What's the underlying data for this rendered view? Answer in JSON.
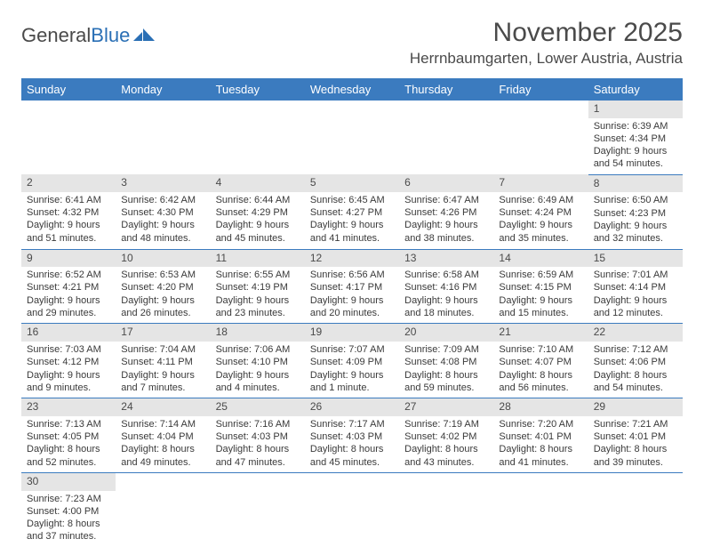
{
  "logo": {
    "text1": "General",
    "text2": "Blue"
  },
  "title": "November 2025",
  "location": "Herrnbaumgarten, Lower Austria, Austria",
  "colors": {
    "header_bg": "#3b7bbf",
    "header_text": "#ffffff",
    "daynum_bg": "#e5e5e5",
    "row_border": "#3b7bbf",
    "logo_gray": "#4a4a4a",
    "logo_blue": "#2a6fb5",
    "body_text": "#3a3a3a"
  },
  "weekdays": [
    "Sunday",
    "Monday",
    "Tuesday",
    "Wednesday",
    "Thursday",
    "Friday",
    "Saturday"
  ],
  "weeks": [
    [
      null,
      null,
      null,
      null,
      null,
      null,
      {
        "n": "1",
        "sr": "Sunrise: 6:39 AM",
        "ss": "Sunset: 4:34 PM",
        "dl1": "Daylight: 9 hours",
        "dl2": "and 54 minutes."
      }
    ],
    [
      {
        "n": "2",
        "sr": "Sunrise: 6:41 AM",
        "ss": "Sunset: 4:32 PM",
        "dl1": "Daylight: 9 hours",
        "dl2": "and 51 minutes."
      },
      {
        "n": "3",
        "sr": "Sunrise: 6:42 AM",
        "ss": "Sunset: 4:30 PM",
        "dl1": "Daylight: 9 hours",
        "dl2": "and 48 minutes."
      },
      {
        "n": "4",
        "sr": "Sunrise: 6:44 AM",
        "ss": "Sunset: 4:29 PM",
        "dl1": "Daylight: 9 hours",
        "dl2": "and 45 minutes."
      },
      {
        "n": "5",
        "sr": "Sunrise: 6:45 AM",
        "ss": "Sunset: 4:27 PM",
        "dl1": "Daylight: 9 hours",
        "dl2": "and 41 minutes."
      },
      {
        "n": "6",
        "sr": "Sunrise: 6:47 AM",
        "ss": "Sunset: 4:26 PM",
        "dl1": "Daylight: 9 hours",
        "dl2": "and 38 minutes."
      },
      {
        "n": "7",
        "sr": "Sunrise: 6:49 AM",
        "ss": "Sunset: 4:24 PM",
        "dl1": "Daylight: 9 hours",
        "dl2": "and 35 minutes."
      },
      {
        "n": "8",
        "sr": "Sunrise: 6:50 AM",
        "ss": "Sunset: 4:23 PM",
        "dl1": "Daylight: 9 hours",
        "dl2": "and 32 minutes."
      }
    ],
    [
      {
        "n": "9",
        "sr": "Sunrise: 6:52 AM",
        "ss": "Sunset: 4:21 PM",
        "dl1": "Daylight: 9 hours",
        "dl2": "and 29 minutes."
      },
      {
        "n": "10",
        "sr": "Sunrise: 6:53 AM",
        "ss": "Sunset: 4:20 PM",
        "dl1": "Daylight: 9 hours",
        "dl2": "and 26 minutes."
      },
      {
        "n": "11",
        "sr": "Sunrise: 6:55 AM",
        "ss": "Sunset: 4:19 PM",
        "dl1": "Daylight: 9 hours",
        "dl2": "and 23 minutes."
      },
      {
        "n": "12",
        "sr": "Sunrise: 6:56 AM",
        "ss": "Sunset: 4:17 PM",
        "dl1": "Daylight: 9 hours",
        "dl2": "and 20 minutes."
      },
      {
        "n": "13",
        "sr": "Sunrise: 6:58 AM",
        "ss": "Sunset: 4:16 PM",
        "dl1": "Daylight: 9 hours",
        "dl2": "and 18 minutes."
      },
      {
        "n": "14",
        "sr": "Sunrise: 6:59 AM",
        "ss": "Sunset: 4:15 PM",
        "dl1": "Daylight: 9 hours",
        "dl2": "and 15 minutes."
      },
      {
        "n": "15",
        "sr": "Sunrise: 7:01 AM",
        "ss": "Sunset: 4:14 PM",
        "dl1": "Daylight: 9 hours",
        "dl2": "and 12 minutes."
      }
    ],
    [
      {
        "n": "16",
        "sr": "Sunrise: 7:03 AM",
        "ss": "Sunset: 4:12 PM",
        "dl1": "Daylight: 9 hours",
        "dl2": "and 9 minutes."
      },
      {
        "n": "17",
        "sr": "Sunrise: 7:04 AM",
        "ss": "Sunset: 4:11 PM",
        "dl1": "Daylight: 9 hours",
        "dl2": "and 7 minutes."
      },
      {
        "n": "18",
        "sr": "Sunrise: 7:06 AM",
        "ss": "Sunset: 4:10 PM",
        "dl1": "Daylight: 9 hours",
        "dl2": "and 4 minutes."
      },
      {
        "n": "19",
        "sr": "Sunrise: 7:07 AM",
        "ss": "Sunset: 4:09 PM",
        "dl1": "Daylight: 9 hours",
        "dl2": "and 1 minute."
      },
      {
        "n": "20",
        "sr": "Sunrise: 7:09 AM",
        "ss": "Sunset: 4:08 PM",
        "dl1": "Daylight: 8 hours",
        "dl2": "and 59 minutes."
      },
      {
        "n": "21",
        "sr": "Sunrise: 7:10 AM",
        "ss": "Sunset: 4:07 PM",
        "dl1": "Daylight: 8 hours",
        "dl2": "and 56 minutes."
      },
      {
        "n": "22",
        "sr": "Sunrise: 7:12 AM",
        "ss": "Sunset: 4:06 PM",
        "dl1": "Daylight: 8 hours",
        "dl2": "and 54 minutes."
      }
    ],
    [
      {
        "n": "23",
        "sr": "Sunrise: 7:13 AM",
        "ss": "Sunset: 4:05 PM",
        "dl1": "Daylight: 8 hours",
        "dl2": "and 52 minutes."
      },
      {
        "n": "24",
        "sr": "Sunrise: 7:14 AM",
        "ss": "Sunset: 4:04 PM",
        "dl1": "Daylight: 8 hours",
        "dl2": "and 49 minutes."
      },
      {
        "n": "25",
        "sr": "Sunrise: 7:16 AM",
        "ss": "Sunset: 4:03 PM",
        "dl1": "Daylight: 8 hours",
        "dl2": "and 47 minutes."
      },
      {
        "n": "26",
        "sr": "Sunrise: 7:17 AM",
        "ss": "Sunset: 4:03 PM",
        "dl1": "Daylight: 8 hours",
        "dl2": "and 45 minutes."
      },
      {
        "n": "27",
        "sr": "Sunrise: 7:19 AM",
        "ss": "Sunset: 4:02 PM",
        "dl1": "Daylight: 8 hours",
        "dl2": "and 43 minutes."
      },
      {
        "n": "28",
        "sr": "Sunrise: 7:20 AM",
        "ss": "Sunset: 4:01 PM",
        "dl1": "Daylight: 8 hours",
        "dl2": "and 41 minutes."
      },
      {
        "n": "29",
        "sr": "Sunrise: 7:21 AM",
        "ss": "Sunset: 4:01 PM",
        "dl1": "Daylight: 8 hours",
        "dl2": "and 39 minutes."
      }
    ],
    [
      {
        "n": "30",
        "sr": "Sunrise: 7:23 AM",
        "ss": "Sunset: 4:00 PM",
        "dl1": "Daylight: 8 hours",
        "dl2": "and 37 minutes."
      },
      null,
      null,
      null,
      null,
      null,
      null
    ]
  ]
}
